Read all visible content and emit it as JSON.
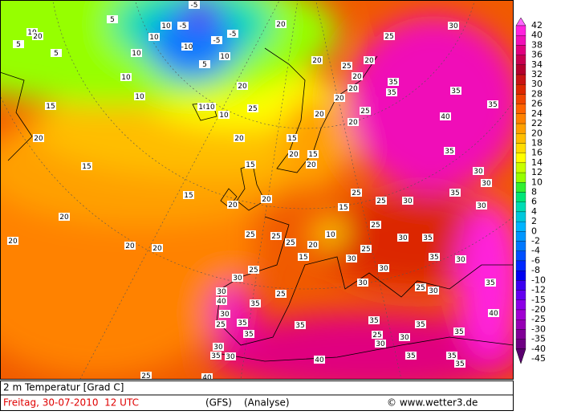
{
  "footer": {
    "title": "2 m Temperatur [Grad C]",
    "date": "Freitag, 30-07-2010  12 UTC",
    "model": "(GFS)",
    "run": "(Analyse)",
    "credit": "© www.wetter3.de"
  },
  "scale": [
    {
      "value": 42,
      "color": "#ff66ff"
    },
    {
      "value": 40,
      "color": "#ff22dd"
    },
    {
      "value": 38,
      "color": "#f010b8"
    },
    {
      "value": 36,
      "color": "#e0007f"
    },
    {
      "value": 34,
      "color": "#c80050"
    },
    {
      "value": 32,
      "color": "#b4002d"
    },
    {
      "value": 30,
      "color": "#c81414"
    },
    {
      "value": 28,
      "color": "#dc2800"
    },
    {
      "value": 26,
      "color": "#f04600"
    },
    {
      "value": 24,
      "color": "#ff6400"
    },
    {
      "value": 22,
      "color": "#ff8200"
    },
    {
      "value": 20,
      "color": "#ffa000"
    },
    {
      "value": 18,
      "color": "#ffbe00"
    },
    {
      "value": 16,
      "color": "#ffdc00"
    },
    {
      "value": 14,
      "color": "#ffff00"
    },
    {
      "value": 12,
      "color": "#c8ff00"
    },
    {
      "value": 10,
      "color": "#96ff00"
    },
    {
      "value": 8,
      "color": "#32f032"
    },
    {
      "value": 6,
      "color": "#00e678"
    },
    {
      "value": 4,
      "color": "#00dcb4"
    },
    {
      "value": 2,
      "color": "#00c8dc"
    },
    {
      "value": 0,
      "color": "#00b4ff"
    },
    {
      "value": -2,
      "color": "#0096ff"
    },
    {
      "value": -4,
      "color": "#0078ff"
    },
    {
      "value": -6,
      "color": "#0050ff"
    },
    {
      "value": -8,
      "color": "#0028ff"
    },
    {
      "value": -10,
      "color": "#0000f0"
    },
    {
      "value": -12,
      "color": "#3c00f0"
    },
    {
      "value": -15,
      "color": "#6400f0"
    },
    {
      "value": -20,
      "color": "#8c00e6"
    },
    {
      "value": -25,
      "color": "#a000d2"
    },
    {
      "value": -30,
      "color": "#9600b4"
    },
    {
      "value": -35,
      "color": "#800096"
    },
    {
      "value": -40,
      "color": "#6e0082"
    },
    {
      "value": -45,
      "color": "#5a006e"
    }
  ],
  "contour_labels": [
    10,
    5,
    -5,
    20,
    10,
    -5,
    5,
    -5,
    -10,
    -5,
    10,
    10,
    5,
    10,
    10,
    5,
    10,
    10,
    10,
    10,
    15,
    20,
    20,
    25,
    20,
    20,
    20,
    20,
    25,
    30,
    25,
    20,
    35,
    35,
    35,
    35,
    40,
    35,
    30,
    20,
    20,
    20,
    25,
    20,
    15,
    20,
    15,
    20,
    15,
    15,
    15,
    20,
    20,
    20,
    15,
    25,
    25,
    30,
    35,
    30,
    20,
    20,
    20,
    25,
    25,
    25,
    20,
    15,
    10,
    25,
    30,
    35,
    25,
    30,
    35,
    30,
    30,
    30,
    25,
    30,
    40,
    35,
    25,
    30,
    35,
    35,
    25,
    35,
    35,
    25,
    30,
    35,
    35,
    40,
    35,
    30,
    30,
    40,
    25,
    35,
    40,
    30,
    35,
    35,
    25,
    30,
    35,
    30,
    30
  ]
}
